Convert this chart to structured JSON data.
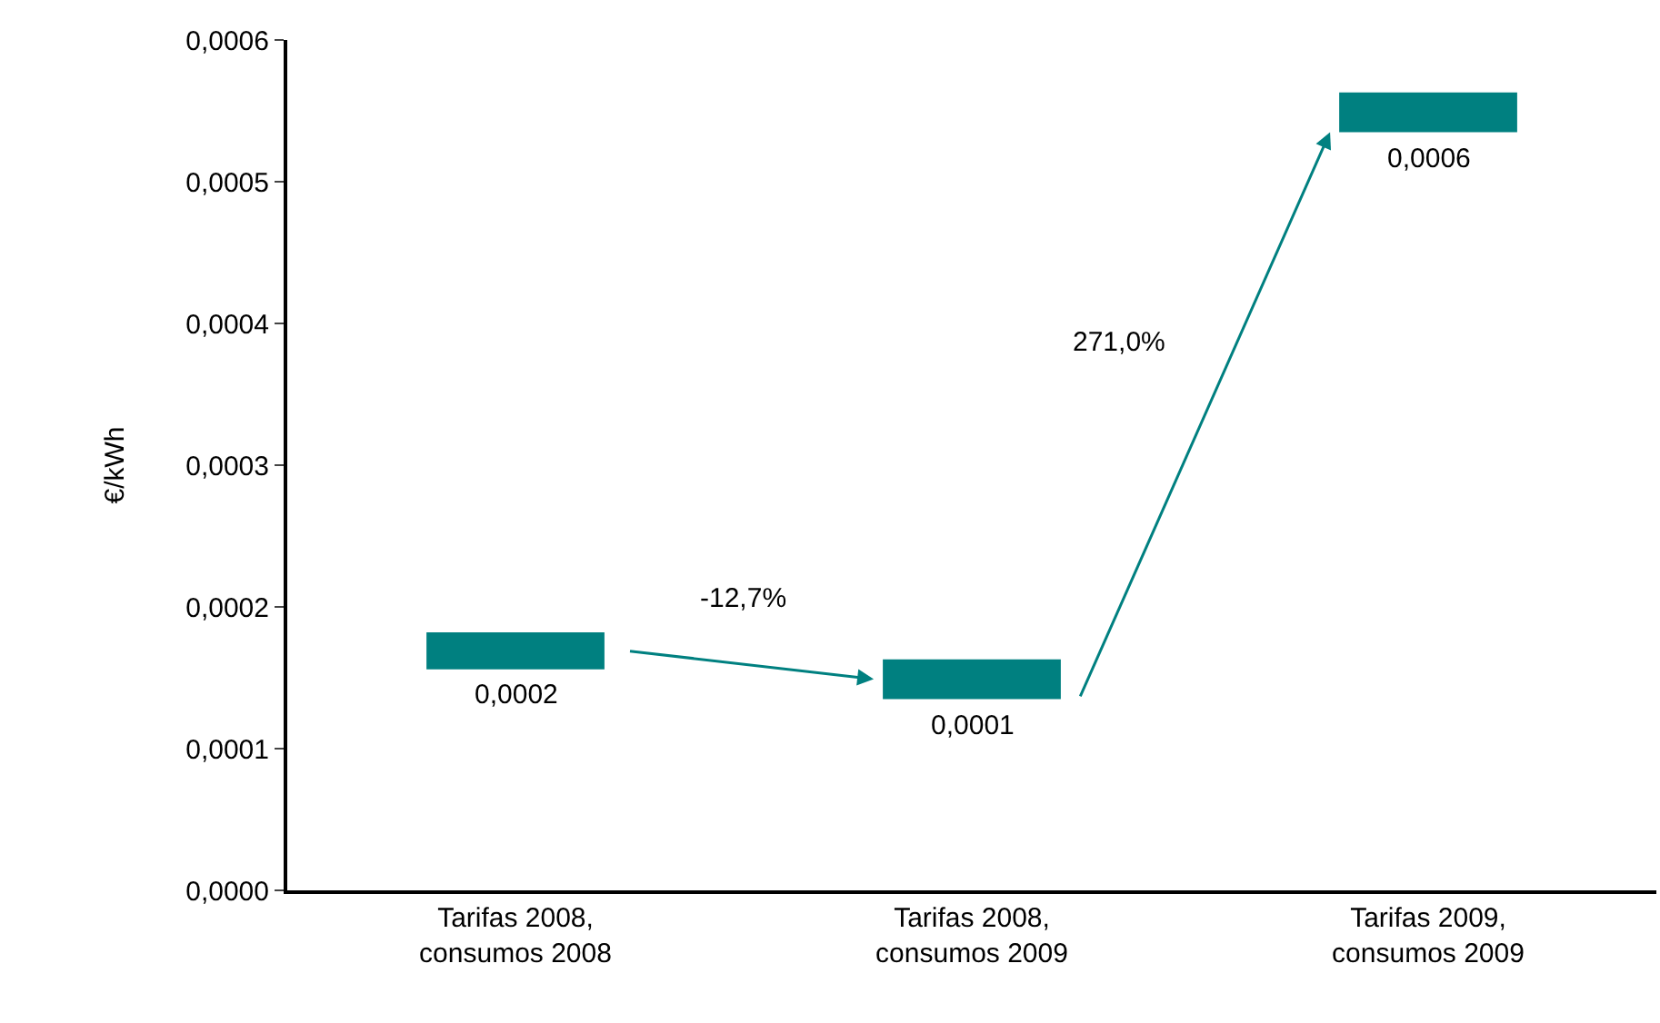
{
  "chart_data": {
    "type": "bar",
    "ylabel": "€/kWh",
    "categories": [
      "Tarifas 2008,\nconsumos 2008",
      "Tarifas 2008,\nconsumos 2009",
      "Tarifas 2009,\nconsumos 2009"
    ],
    "base": [
      0.000156,
      0.000135,
      0.000535
    ],
    "values": [
      2.6e-05,
      2.8e-05,
      2.8e-05
    ],
    "color": "#008080",
    "ylim": [
      0,
      0.0006
    ],
    "yticks": [
      {
        "value": 0,
        "label": "0,0000"
      },
      {
        "value": 0.0001,
        "label": "0,0001"
      },
      {
        "value": 0.0002,
        "label": "0,0002"
      },
      {
        "value": 0.0003,
        "label": "0,0003"
      },
      {
        "value": 0.0004,
        "label": "0,0004"
      },
      {
        "value": 0.0005,
        "label": "0,0005"
      },
      {
        "value": 0.0006,
        "label": "0,0006"
      }
    ],
    "annotations": [
      {
        "text": "0,0002",
        "x": "Tarifas 2008,\nconsumos 2008",
        "y": 0.000156
      },
      {
        "text": "0,0001",
        "x": "Tarifas 2008,\nconsumos 2009",
        "y": 0.000135
      },
      {
        "text": "0,0006",
        "x": "Tarifas 2009,\nconsumos 2009",
        "y": 0.000535
      },
      "-12,7%",
      "271,0%"
    ]
  }
}
